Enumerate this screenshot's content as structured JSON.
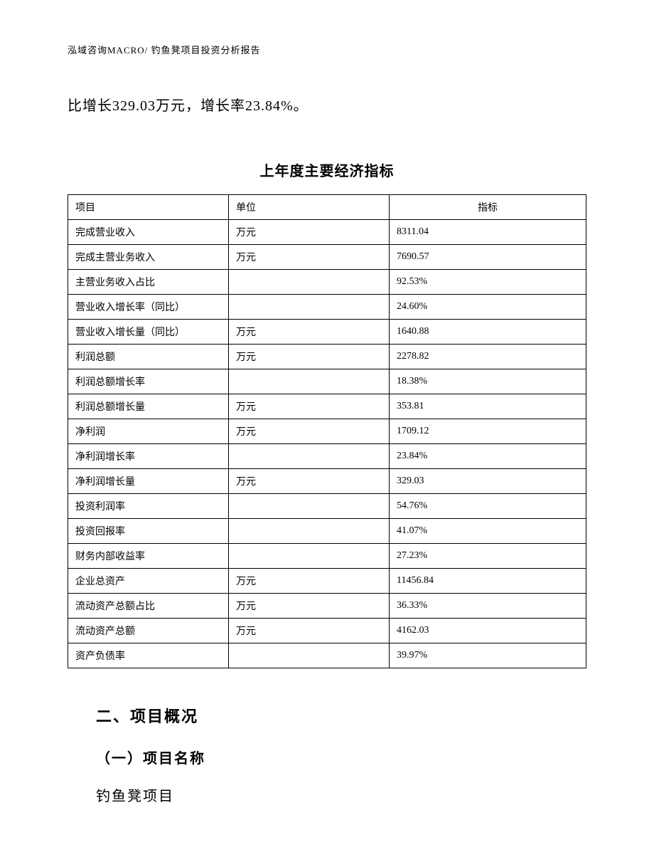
{
  "header": {
    "text": "泓域咨询MACRO/   钓鱼凳项目投资分析报告"
  },
  "body_text": "比增长329.03万元，增长率23.84%。",
  "table": {
    "title": "上年度主要经济指标",
    "columns": [
      "项目",
      "单位",
      "指标"
    ],
    "rows": [
      [
        "完成营业收入",
        "万元",
        "8311.04"
      ],
      [
        "完成主营业务收入",
        "万元",
        "7690.57"
      ],
      [
        "主营业务收入占比",
        "",
        "92.53%"
      ],
      [
        "营业收入增长率（同比）",
        "",
        "24.60%"
      ],
      [
        "营业收入增长量（同比）",
        "万元",
        "1640.88"
      ],
      [
        "利润总额",
        "万元",
        "2278.82"
      ],
      [
        "利润总额增长率",
        "",
        "18.38%"
      ],
      [
        "利润总额增长量",
        "万元",
        "353.81"
      ],
      [
        "净利润",
        "万元",
        "1709.12"
      ],
      [
        "净利润增长率",
        "",
        "23.84%"
      ],
      [
        "净利润增长量",
        "万元",
        "329.03"
      ],
      [
        "投资利润率",
        "",
        "54.76%"
      ],
      [
        "投资回报率",
        "",
        "41.07%"
      ],
      [
        "财务内部收益率",
        "",
        "27.23%"
      ],
      [
        "企业总资产",
        "万元",
        "11456.84"
      ],
      [
        "流动资产总额占比",
        "万元",
        "36.33%"
      ],
      [
        "流动资产总额",
        "万元",
        "4162.03"
      ],
      [
        "资产负债率",
        "",
        "39.97%"
      ]
    ]
  },
  "section": {
    "heading": "二、项目概况",
    "sub_heading": "（一）项目名称",
    "content": "钓鱼凳项目"
  }
}
